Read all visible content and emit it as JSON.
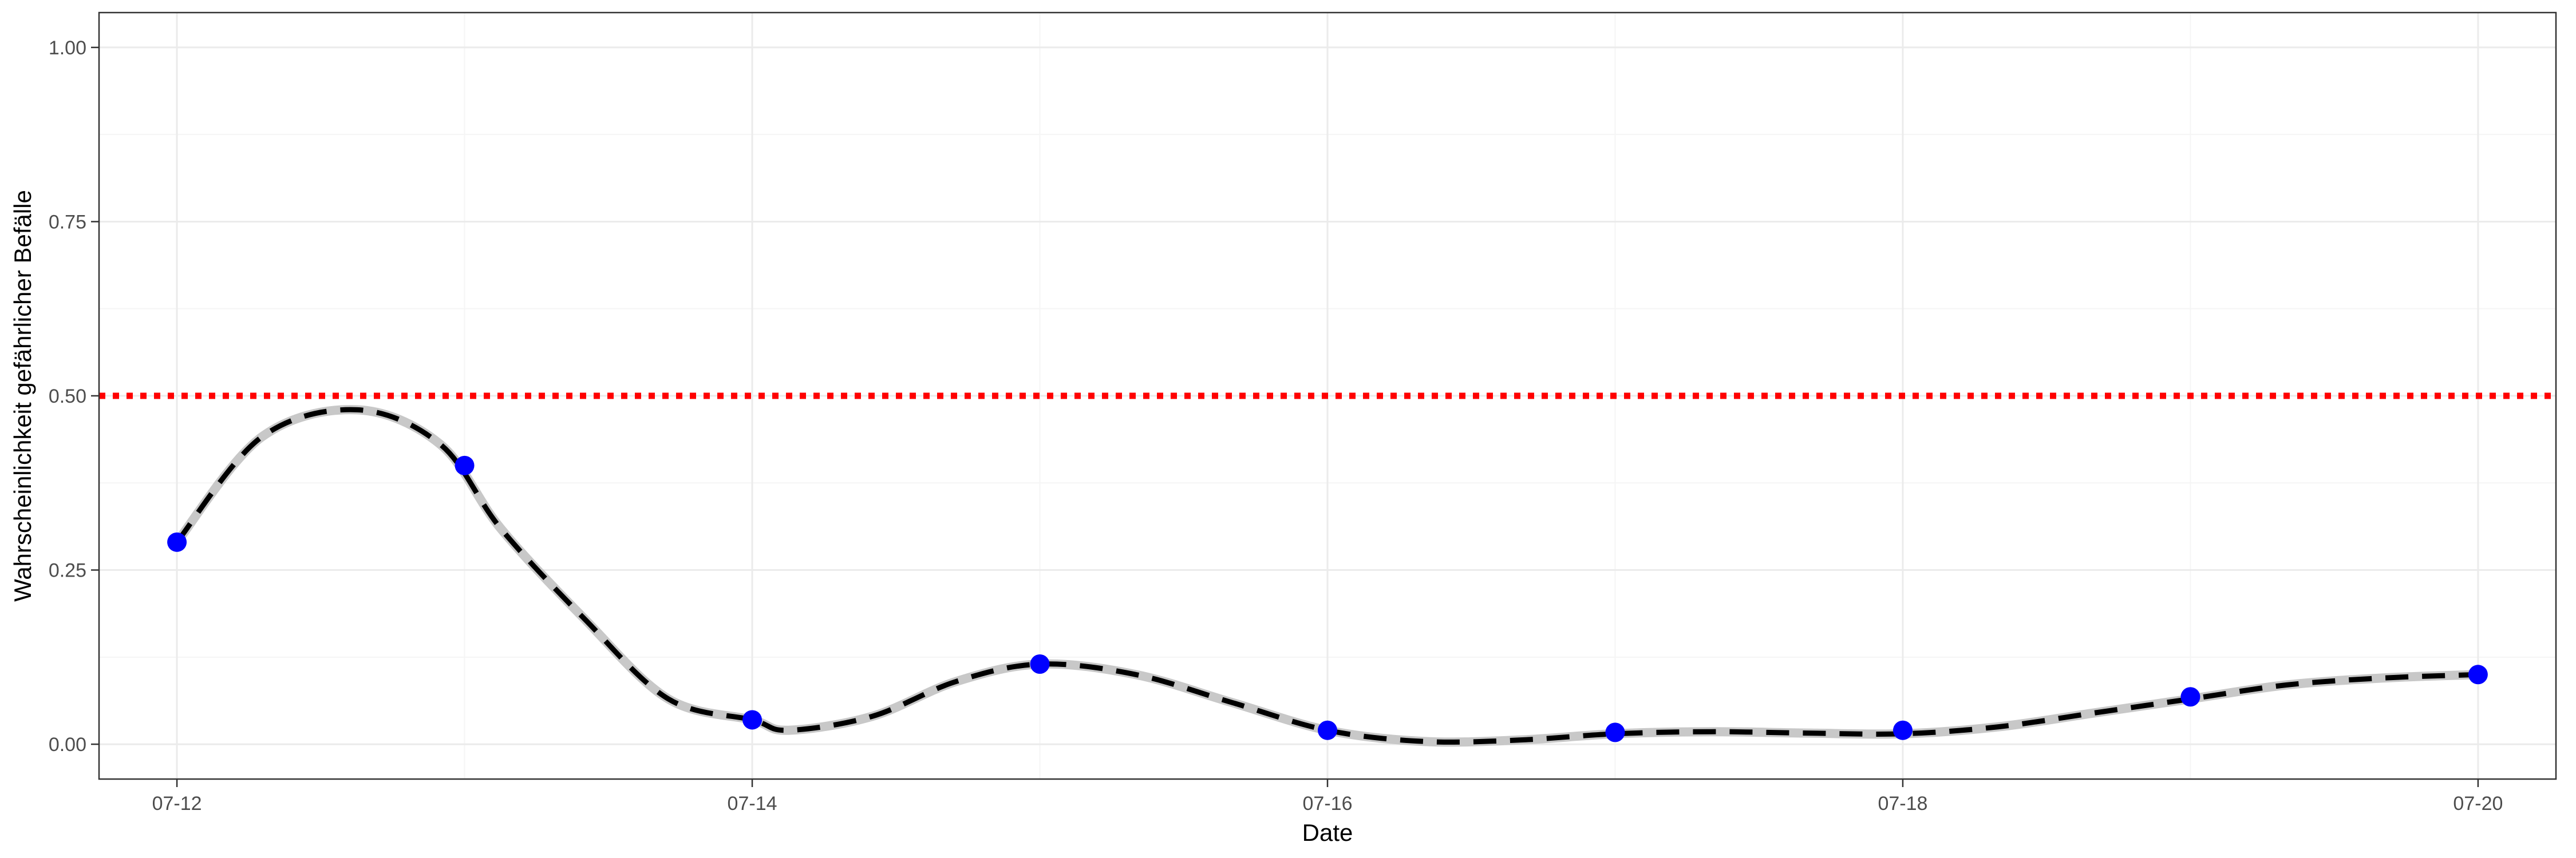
{
  "chart_data": {
    "type": "line",
    "xlabel": "Date",
    "ylabel": "Wahrscheinlichkeit gefährlicher Befälle",
    "ylim": [
      0,
      1
    ],
    "xlim": [
      "2021-07-11T17:30",
      "2021-07-20T06:30"
    ],
    "x_ticks": [
      "07-12",
      "07-14",
      "07-16",
      "07-18",
      "07-20"
    ],
    "x_tick_dates": [
      "2021-07-12",
      "2021-07-14",
      "2021-07-16",
      "2021-07-18",
      "2021-07-20"
    ],
    "y_ticks": [
      "0.00",
      "0.25",
      "0.50",
      "0.75",
      "1.00"
    ],
    "y_tick_values": [
      0,
      0.25,
      0.5,
      0.75,
      1
    ],
    "grid": true,
    "threshold": {
      "value": 0.5,
      "style": "dotted",
      "color": "#ff0000"
    },
    "series": [
      {
        "kind": "curve",
        "style": "dashed",
        "color": "#000000",
        "band_color": "#c8c8c8",
        "x": [
          "2021-07-12T00:00",
          "2021-07-12T07:00",
          "2021-07-12T15:00",
          "2021-07-12T22:00",
          "2021-07-13T03:00",
          "2021-07-13T10:00",
          "2021-07-13T17:00",
          "2021-07-14T00:00",
          "2021-07-14T03:00",
          "2021-07-14T10:00",
          "2021-07-14T17:00",
          "2021-07-15T00:00",
          "2021-07-15T08:00",
          "2021-07-15T16:00",
          "2021-07-16T00:00",
          "2021-07-16T08:00",
          "2021-07-16T16:00",
          "2021-07-17T00:00",
          "2021-07-17T08:00",
          "2021-07-17T16:00",
          "2021-07-18T00:00",
          "2021-07-18T08:00",
          "2021-07-18T16:00",
          "2021-07-19T00:00",
          "2021-07-19T08:00",
          "2021-07-19T16:00",
          "2021-07-20T00:00"
        ],
        "y": [
          0.29,
          0.44,
          0.48,
          0.43,
          0.31,
          0.18,
          0.065,
          0.035,
          0.02,
          0.04,
          0.09,
          0.115,
          0.1,
          0.06,
          0.02,
          0.004,
          0.006,
          0.015,
          0.018,
          0.016,
          0.015,
          0.025,
          0.045,
          0.065,
          0.085,
          0.095,
          0.1
        ]
      },
      {
        "kind": "points",
        "color": "#0000ff",
        "x": [
          "2021-07-12",
          "2021-07-13",
          "2021-07-14",
          "2021-07-15",
          "2021-07-16",
          "2021-07-17",
          "2021-07-18",
          "2021-07-19",
          "2021-07-20"
        ],
        "y": [
          0.29,
          0.4,
          0.035,
          0.115,
          0.02,
          0.017,
          0.02,
          0.068,
          0.1
        ]
      }
    ]
  },
  "colors": {
    "panel_border": "#333333",
    "grid_major": "#ebebeb",
    "grid_minor": "#f5f5f5",
    "tick": "#333333"
  }
}
